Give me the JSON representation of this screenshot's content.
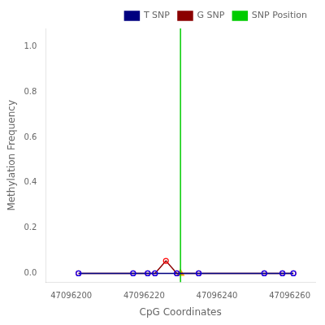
{
  "chart_data": {
    "type": "line",
    "xlabel": "CpG Coordinates",
    "ylabel": "Methylation Frequency",
    "xlim": [
      47096193,
      47096267
    ],
    "ylim": [
      -0.04,
      1.08
    ],
    "xticks": [
      47096200,
      47096220,
      47096240,
      47096260
    ],
    "yticks": [
      {
        "value": 0.0,
        "label": "0.0"
      },
      0.2,
      0.4,
      0.6,
      0.8,
      {
        "value": 1.0,
        "label": "1.0"
      }
    ],
    "grid": false,
    "legend": "upper right",
    "series": [
      {
        "name": "T SNP",
        "type": "line",
        "marker": "circle",
        "color": "#000080",
        "colors": [
          "blue",
          "blue",
          "blue",
          "blue",
          "blue",
          "blue",
          "blue",
          "blue",
          "blue"
        ],
        "x": [
          47096202,
          47096217,
          47096221,
          47096223,
          47096229,
          47096235,
          47096253,
          47096258,
          47096261
        ],
        "values": [
          0.0,
          0.0,
          0.0,
          0.0,
          0.0,
          0.0,
          0.0,
          0.0,
          0.0
        ]
      },
      {
        "name": "G SNP",
        "type": "line",
        "marker": "circle",
        "color": "#8B0000",
        "colors": [
          "red",
          "red",
          "red",
          "red",
          "red",
          "red",
          "red",
          "red",
          "red",
          "red"
        ],
        "x": [
          47096202,
          47096217,
          47096221,
          47096223,
          47096226,
          47096229,
          47096235,
          47096253,
          47096258,
          47096261
        ],
        "values": [
          0.0,
          0.0,
          0.0,
          0.0,
          0.055,
          0.0,
          0.0,
          0.0,
          0.0,
          0.0
        ]
      },
      {
        "name": "SNP Position",
        "type": "vline",
        "color": "#00CC00",
        "x": 47096230
      },
      {
        "type": "scatter",
        "marker": "triangle",
        "color": "#FFA500",
        "x": [
          47096230
        ],
        "values": [
          0.0
        ]
      }
    ]
  }
}
